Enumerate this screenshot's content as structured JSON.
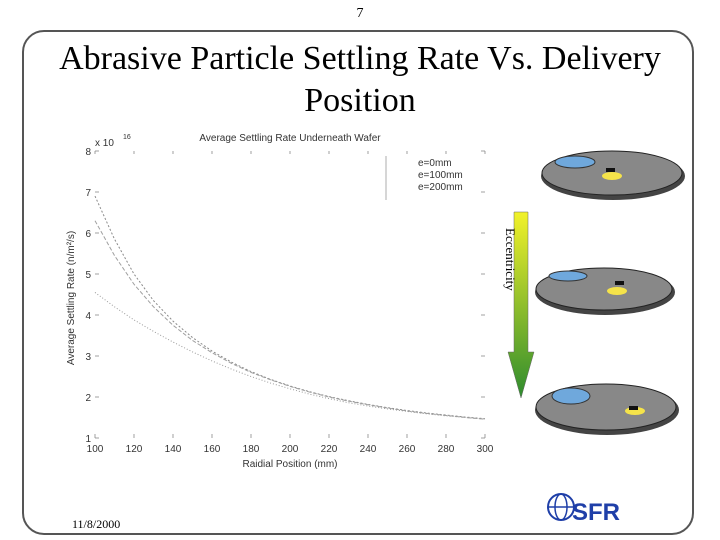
{
  "slide": {
    "page_number": "7",
    "title_line1": "Abrasive Particle Settling Rate Vs. Delivery",
    "title_line2": "Position",
    "date": "11/8/2000",
    "eccentricity_label": "Eccentricity",
    "logo_text": "SFR"
  },
  "colors": {
    "arrow_yellow": "#f2f22a",
    "arrow_green": "#2e8b2e",
    "wafer_gray": "#888888",
    "nozzle_blue": "#6fa8dc",
    "particle_yellow": "#f5e34a",
    "logo_blue": "#1f3fa8"
  },
  "chart_data": {
    "type": "line",
    "title": "Average Settling Rate Underneath Wafer",
    "xlabel": "Raidial Position (mm)",
    "ylabel": "Average Settling Rate (n/m²/s)",
    "y_multiplier": "x 10",
    "y_exponent": "16",
    "xlim": [
      100,
      300
    ],
    "ylim": [
      1,
      8
    ],
    "x_ticks": [
      "100",
      "120",
      "140",
      "160",
      "180",
      "200",
      "220",
      "240",
      "260",
      "280",
      "300"
    ],
    "y_ticks": [
      "1",
      "2",
      "3",
      "4",
      "5",
      "6",
      "7",
      "8"
    ],
    "legend_location": "top-right",
    "x": [
      100,
      110,
      120,
      130,
      140,
      150,
      160,
      170,
      180,
      190,
      200,
      210,
      220,
      230,
      240,
      250,
      260,
      270,
      280,
      290,
      300
    ],
    "series": [
      {
        "name": "e=0mm",
        "values": [
          6.9,
          5.85,
          5.0,
          4.35,
          3.85,
          3.45,
          3.12,
          2.85,
          2.62,
          2.43,
          2.27,
          2.13,
          2.01,
          1.91,
          1.82,
          1.74,
          1.67,
          1.61,
          1.56,
          1.51,
          1.47
        ]
      },
      {
        "name": "e=100mm",
        "values": [
          6.3,
          5.45,
          4.75,
          4.2,
          3.75,
          3.38,
          3.08,
          2.82,
          2.6,
          2.42,
          2.26,
          2.12,
          2.0,
          1.9,
          1.81,
          1.73,
          1.66,
          1.6,
          1.55,
          1.5,
          1.46
        ]
      },
      {
        "name": "e=200mm",
        "values": [
          4.55,
          4.2,
          3.88,
          3.6,
          3.34,
          3.1,
          2.88,
          2.68,
          2.5,
          2.34,
          2.2,
          2.07,
          1.96,
          1.86,
          1.78,
          1.71,
          1.65,
          1.59,
          1.54,
          1.5,
          1.46
        ]
      }
    ]
  }
}
